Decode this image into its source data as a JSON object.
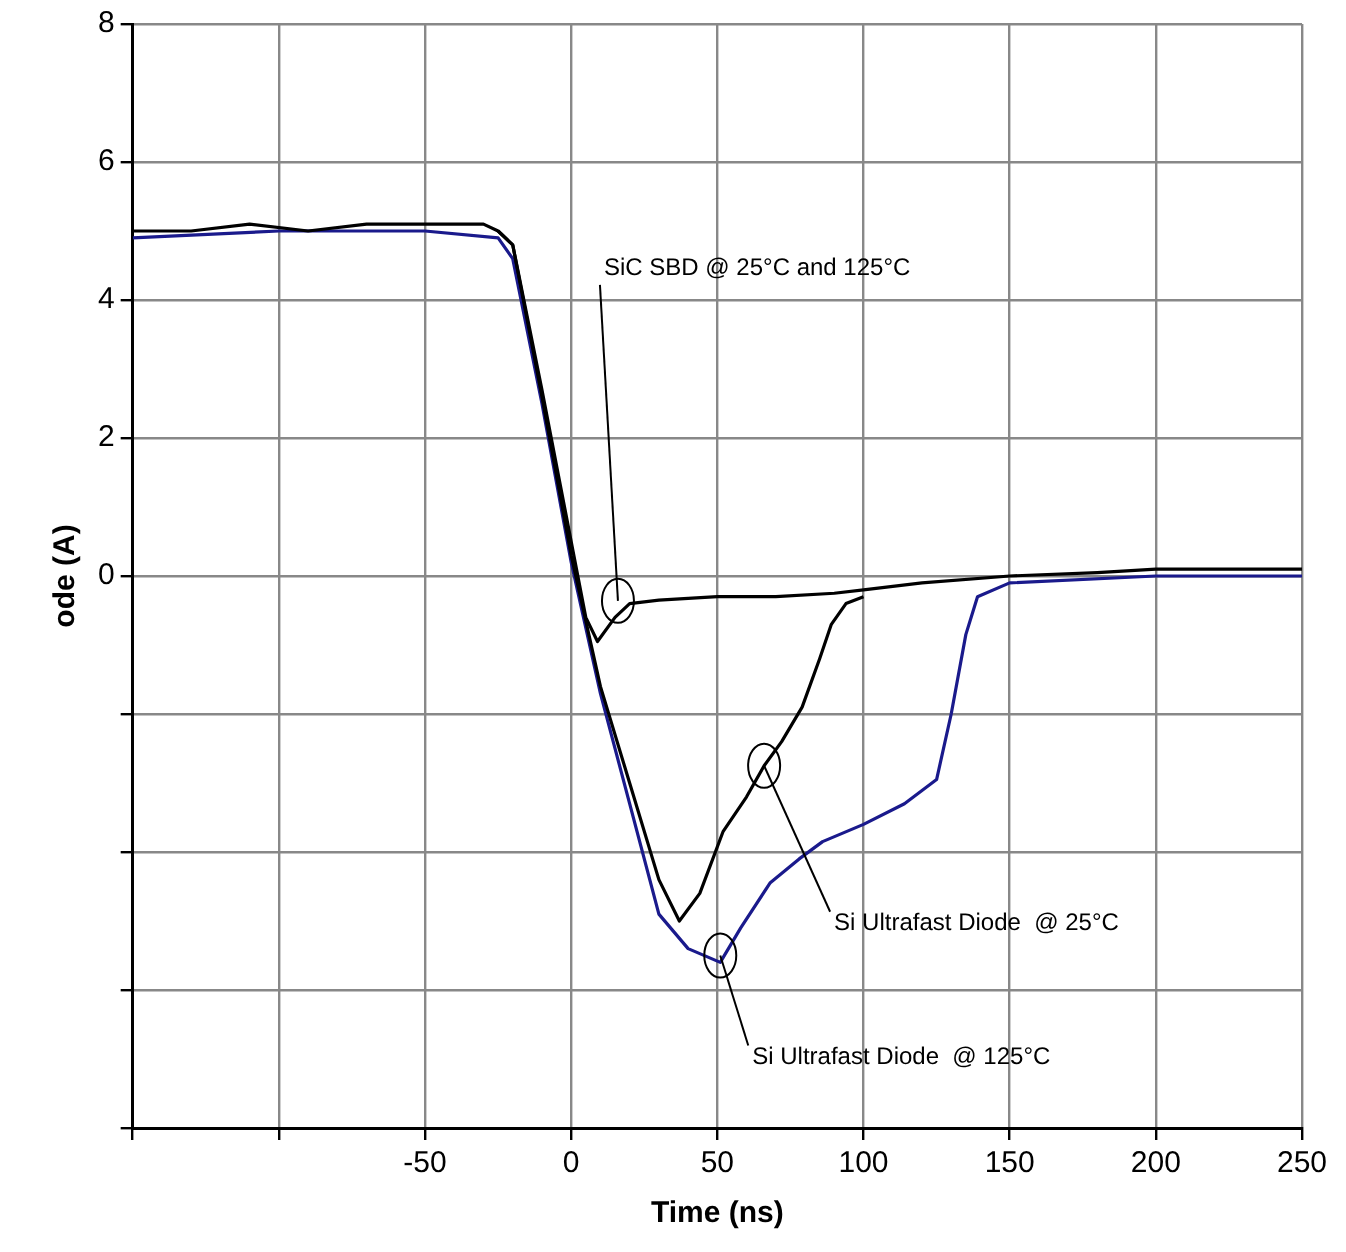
{
  "chart_data": {
    "type": "line",
    "xlabel": "Time (ns)",
    "ylabel": "ode (A)",
    "xlim": [
      -150,
      250
    ],
    "xticks": [
      {
        "value": -150,
        "label": null
      },
      {
        "value": -100,
        "label": null
      },
      -50,
      0,
      50,
      100,
      150,
      200,
      250
    ],
    "ylim": [
      -8,
      8
    ],
    "yticks": [
      {
        "value": -8,
        "label": null
      },
      {
        "value": -6,
        "label": null
      },
      {
        "value": -4,
        "label": null
      },
      {
        "value": -2,
        "label": null
      },
      0,
      2,
      4,
      6,
      8
    ],
    "grid": true,
    "legend": false,
    "marker": "none",
    "line_style": "solid",
    "series": [
      {
        "color": "#000000",
        "x": [
          -150,
          -130,
          -110,
          -90,
          -70,
          -50,
          -30,
          -25,
          -20,
          -10,
          0,
          5,
          9,
          15,
          20,
          30,
          50,
          70,
          90,
          100,
          120,
          150,
          180,
          200,
          230,
          250
        ],
        "values": [
          5.0,
          5.0,
          5.1,
          5.0,
          5.1,
          5.1,
          5.1,
          5.0,
          4.8,
          2.7,
          0.5,
          -0.6,
          -0.95,
          -0.6,
          -0.4,
          -0.35,
          -0.3,
          -0.3,
          -0.25,
          -0.2,
          -0.1,
          0.0,
          0.05,
          0.1,
          0.1,
          0.1
        ]
      },
      {
        "color": "#000000",
        "x": [
          -25,
          -20,
          -10,
          0,
          10,
          20,
          30,
          37,
          44,
          52,
          60,
          66,
          72,
          79,
          85,
          89,
          94,
          100
        ],
        "values": [
          5.0,
          4.8,
          2.6,
          0.3,
          -1.6,
          -3.0,
          -4.4,
          -5.0,
          -4.6,
          -3.7,
          -3.2,
          -2.75,
          -2.4,
          -1.9,
          -1.2,
          -0.7,
          -0.4,
          -0.3
        ]
      },
      {
        "color": "#1a1a8c",
        "x": [
          -150,
          -100,
          -50,
          -25,
          -20,
          -10,
          0,
          10,
          20,
          30,
          40,
          51,
          58,
          68,
          78,
          86,
          100,
          114,
          125,
          130,
          135,
          139,
          150,
          200,
          250
        ],
        "values": [
          4.9,
          5.0,
          5.0,
          4.9,
          4.6,
          2.5,
          0.2,
          -1.7,
          -3.3,
          -4.9,
          -5.4,
          -5.6,
          -5.1,
          -4.45,
          -4.1,
          -3.85,
          -3.6,
          -3.3,
          -2.95,
          -2.0,
          -0.85,
          -0.3,
          -0.1,
          0.0,
          0.0
        ]
      }
    ],
    "annotations": [
      {
        "text": "SiC SBD @ 25°C and 125°C",
        "x": 16,
        "y": -0.36
      },
      {
        "text": "Si Ultrafast Diode  @ 25°C",
        "x": 66,
        "y": -2.75
      },
      {
        "text": "Si Ultrafast Diode  @ 125°C",
        "x": 51,
        "y": -5.5
      }
    ]
  }
}
